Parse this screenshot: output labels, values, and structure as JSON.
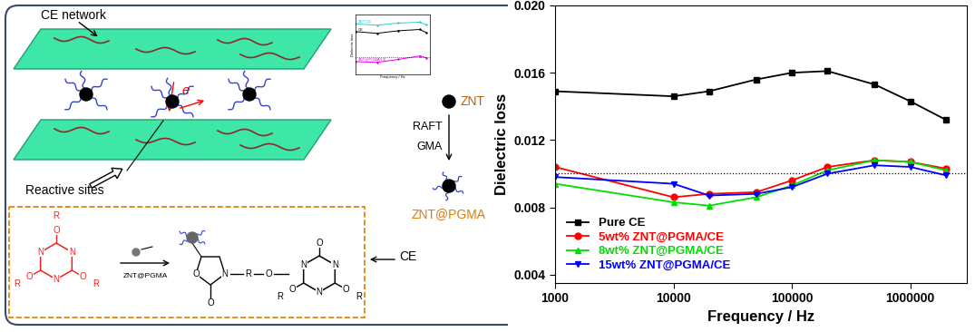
{
  "diagram": {
    "network_label": "CE network",
    "electron_label": "e",
    "sites_label": "Reactive sites",
    "particle_label": "ZNT",
    "method_label": "RAFT",
    "monomer_label": "GMA",
    "grafted_label": "ZNT@PGMA",
    "matrix_label": "CE",
    "scheme": {
      "nitrogen": "N",
      "oxygen": "O",
      "group": "R",
      "reagent": "ZNT@PGMA"
    }
  },
  "chart_data": [
    {
      "type": "line",
      "x": [
        1000,
        10000,
        20000,
        50000,
        100000,
        200000,
        500000,
        1000000,
        2000000
      ],
      "series": [
        {
          "name": "Pure CE",
          "color": "#000000",
          "marker": "s",
          "values": [
            0.0149,
            0.0146,
            0.0149,
            0.0156,
            0.016,
            0.0161,
            0.0153,
            0.0143,
            0.0132
          ]
        },
        {
          "name": "5wt% ZNT@PGMA/CE",
          "color": "#ff0000",
          "marker": "o",
          "values": [
            0.0104,
            0.0086,
            0.0088,
            0.0089,
            0.0096,
            0.0104,
            0.0108,
            0.0107,
            0.0103
          ]
        },
        {
          "name": "8wt% ZNT@PGMA/CE",
          "color": "#00dd00",
          "marker": "^",
          "values": [
            0.0094,
            0.0083,
            0.0081,
            0.0086,
            0.0093,
            0.0102,
            0.0108,
            0.0107,
            0.0102
          ]
        },
        {
          "name": "15wt% ZNT@PGMA/CE",
          "color": "#0000ff",
          "marker": "v",
          "values": [
            0.0098,
            0.0094,
            0.0087,
            0.0088,
            0.0092,
            0.01,
            0.0105,
            0.0104,
            0.0099
          ]
        }
      ],
      "x_label": "Frequency / Hz",
      "y_label": "Dielectric loss",
      "log": "x",
      "xlim": [
        1000,
        3000000
      ],
      "ylim": [
        0.0035,
        0.02
      ],
      "xticks": [
        1000,
        10000,
        100000,
        1000000
      ],
      "yticks": [
        0.004,
        0.008,
        0.012,
        0.016,
        {
          "value": 0.02,
          "label": "0.020"
        }
      ],
      "legend": "lower left",
      "reference_line": 0.01
    },
    {
      "type": "line",
      "x": [
        1000,
        10000,
        100000,
        1000000,
        2000000
      ],
      "series": [
        {
          "name": "ZNT/CE",
          "color": "#33cccc",
          "values": [
            0.0178,
            0.0175,
            0.018,
            0.0182,
            0.0176
          ]
        },
        {
          "name": "CE",
          "color": "#000000",
          "values": [
            0.016,
            0.0156,
            0.0162,
            0.0165,
            0.0158
          ]
        },
        {
          "name": "ZNT@PGMA/CE",
          "color": "#dd00dd",
          "values": [
            0.009,
            0.0088,
            0.0095,
            0.0103,
            0.0099
          ]
        }
      ],
      "x_label": "Frequency / Hz",
      "y_label": "Dielectric loss",
      "log": "x",
      "xlim": [
        1000,
        3000000
      ],
      "ylim": [
        0.006,
        0.02
      ],
      "tick_labels": false,
      "reference_line": 0.01
    }
  ]
}
